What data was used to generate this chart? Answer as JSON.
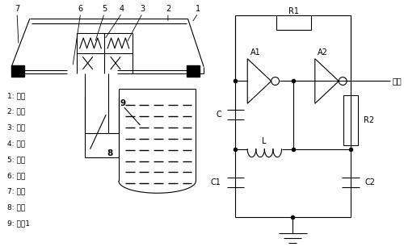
{
  "bg_color": "#ffffff",
  "line_color": "#000000",
  "labels_left": [
    "1: 气腔",
    "2: 导板",
    "3: 线圈",
    "4: 弹簧",
    "5: 磁芯",
    "6: 外壳",
    "7: 隔膜",
    "8: 气路",
    "9: 水罐1"
  ],
  "num_labels_top": [
    "1",
    "2",
    "3",
    "4",
    "5",
    "6",
    "7"
  ],
  "label8": "8",
  "label9": "9",
  "output_text": "输出"
}
